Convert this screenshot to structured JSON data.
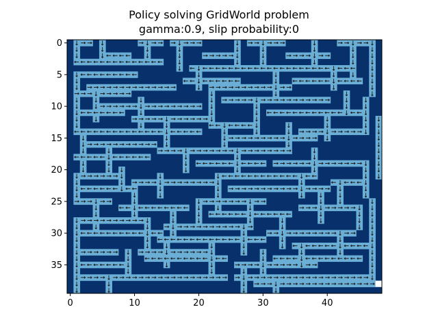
{
  "chart_data": {
    "type": "heatmap",
    "title_lines": [
      "Policy solving GridWorld problem",
      "gamma:0.9, slip probability:0"
    ],
    "xlabel": "",
    "ylabel": "",
    "grid_size": [
      40,
      49
    ],
    "xlim": [
      -0.5,
      48.5
    ],
    "ylim": [
      39.5,
      -0.5
    ],
    "x_ticks": [
      0,
      10,
      20,
      30,
      40
    ],
    "y_ticks": [
      0,
      5,
      10,
      15,
      20,
      25,
      30,
      35
    ],
    "colors": {
      "wall": "#08306b",
      "path": "#6baed6",
      "goal": "#ffffff",
      "arrow": "#1a1a1a",
      "background": "#ffffff"
    },
    "goal": {
      "row": 38,
      "col": 48
    },
    "path_segments": [
      {
        "dir": "right",
        "row": 0,
        "c0": 1,
        "c1": 3
      },
      {
        "dir": "down",
        "col": 1,
        "r0": 0,
        "r1": 3
      },
      {
        "dir": "left",
        "row": 2,
        "c0": 5,
        "c1": 9
      },
      {
        "dir": "down",
        "col": 5,
        "r0": 0,
        "r1": 2
      },
      {
        "dir": "right",
        "row": 0,
        "c0": 11,
        "c1": 14
      },
      {
        "dir": "down",
        "col": 12,
        "r0": 0,
        "r1": 3
      },
      {
        "dir": "left",
        "row": 3,
        "c0": 1,
        "c1": 14
      },
      {
        "dir": "right",
        "row": 0,
        "c0": 16,
        "c1": 20
      },
      {
        "dir": "down",
        "col": 17,
        "r0": 0,
        "r1": 4
      },
      {
        "dir": "right",
        "row": 2,
        "c0": 21,
        "c1": 26
      },
      {
        "dir": "down",
        "col": 26,
        "r0": 0,
        "r1": 3
      },
      {
        "dir": "right",
        "row": 0,
        "c0": 28,
        "c1": 33
      },
      {
        "dir": "down",
        "col": 30,
        "r0": 0,
        "r1": 4
      },
      {
        "dir": "right",
        "row": 2,
        "c0": 34,
        "c1": 40
      },
      {
        "dir": "down",
        "col": 38,
        "r0": 0,
        "r1": 3
      },
      {
        "dir": "right",
        "row": 0,
        "c0": 42,
        "c1": 47
      },
      {
        "dir": "down",
        "col": 44,
        "r0": 0,
        "r1": 5
      },
      {
        "dir": "left",
        "row": 4,
        "c0": 19,
        "c1": 44
      },
      {
        "dir": "down",
        "col": 47,
        "r0": 0,
        "r1": 8
      },
      {
        "dir": "left",
        "row": 5,
        "c0": 1,
        "c1": 10
      },
      {
        "dir": "down",
        "col": 1,
        "r0": 5,
        "r1": 8
      },
      {
        "dir": "right",
        "row": 7,
        "c0": 3,
        "c1": 16
      },
      {
        "dir": "left",
        "row": 6,
        "c0": 18,
        "c1": 26
      },
      {
        "dir": "down",
        "col": 20,
        "r0": 4,
        "r1": 7
      },
      {
        "dir": "right",
        "row": 7,
        "c0": 22,
        "c1": 34
      },
      {
        "dir": "down",
        "col": 32,
        "r0": 5,
        "r1": 8
      },
      {
        "dir": "left",
        "row": 6,
        "c0": 35,
        "c1": 45
      },
      {
        "dir": "down",
        "col": 41,
        "r0": 4,
        "r1": 7
      },
      {
        "dir": "right",
        "row": 8,
        "c0": 1,
        "c1": 9
      },
      {
        "dir": "down",
        "col": 4,
        "r0": 8,
        "r1": 12
      },
      {
        "dir": "right",
        "row": 10,
        "c0": 5,
        "c1": 20
      },
      {
        "dir": "down",
        "col": 11,
        "r0": 9,
        "r1": 13
      },
      {
        "dir": "left",
        "row": 11,
        "c0": 1,
        "c1": 8
      },
      {
        "dir": "down",
        "col": 1,
        "r0": 9,
        "r1": 14
      },
      {
        "dir": "right",
        "row": 12,
        "c0": 10,
        "c1": 22
      },
      {
        "dir": "down",
        "col": 22,
        "r0": 8,
        "r1": 12
      },
      {
        "dir": "right",
        "row": 9,
        "c0": 24,
        "c1": 40
      },
      {
        "dir": "down",
        "col": 29,
        "r0": 9,
        "r1": 14
      },
      {
        "dir": "left",
        "row": 11,
        "c0": 31,
        "c1": 45
      },
      {
        "dir": "down",
        "col": 43,
        "r0": 8,
        "r1": 11
      },
      {
        "dir": "down",
        "col": 46,
        "r0": 9,
        "r1": 14
      },
      {
        "dir": "left",
        "row": 14,
        "c0": 1,
        "c1": 20
      },
      {
        "dir": "down",
        "col": 15,
        "r0": 12,
        "r1": 16
      },
      {
        "dir": "right",
        "row": 16,
        "c0": 2,
        "c1": 13
      },
      {
        "dir": "down",
        "col": 2,
        "r0": 15,
        "r1": 20
      },
      {
        "dir": "left",
        "row": 13,
        "c0": 22,
        "c1": 28
      },
      {
        "dir": "down",
        "col": 24,
        "r0": 13,
        "r1": 17
      },
      {
        "dir": "right",
        "row": 15,
        "c0": 25,
        "c1": 38
      },
      {
        "dir": "down",
        "col": 34,
        "r0": 13,
        "r1": 16
      },
      {
        "dir": "right",
        "row": 14,
        "c0": 36,
        "c1": 45
      },
      {
        "dir": "down",
        "col": 40,
        "r0": 12,
        "r1": 15
      },
      {
        "dir": "down",
        "col": 48,
        "r0": 12,
        "r1": 21
      },
      {
        "dir": "left",
        "row": 18,
        "c0": 1,
        "c1": 12
      },
      {
        "dir": "down",
        "col": 6,
        "r0": 17,
        "r1": 21
      },
      {
        "dir": "right",
        "row": 17,
        "c0": 14,
        "c1": 34
      },
      {
        "dir": "down",
        "col": 18,
        "r0": 17,
        "r1": 20
      },
      {
        "dir": "left",
        "row": 19,
        "c0": 20,
        "c1": 30
      },
      {
        "dir": "down",
        "col": 26,
        "r0": 17,
        "r1": 20
      },
      {
        "dir": "right",
        "row": 19,
        "c0": 32,
        "c1": 45
      },
      {
        "dir": "down",
        "col": 38,
        "r0": 17,
        "r1": 20
      },
      {
        "dir": "right",
        "row": 21,
        "c0": 1,
        "c1": 7
      },
      {
        "dir": "down",
        "col": 1,
        "r0": 21,
        "r1": 25
      },
      {
        "dir": "left",
        "row": 23,
        "c0": 2,
        "c1": 10
      },
      {
        "dir": "down",
        "col": 8,
        "r0": 20,
        "r1": 23
      },
      {
        "dir": "right",
        "row": 22,
        "c0": 10,
        "c1": 22
      },
      {
        "dir": "down",
        "col": 14,
        "r0": 21,
        "r1": 24
      },
      {
        "dir": "left",
        "row": 21,
        "c0": 24,
        "c1": 38
      },
      {
        "dir": "down",
        "col": 23,
        "r0": 21,
        "r1": 26
      },
      {
        "dir": "right",
        "row": 23,
        "c0": 25,
        "c1": 40
      },
      {
        "dir": "down",
        "col": 36,
        "r0": 21,
        "r1": 24
      },
      {
        "dir": "left",
        "row": 22,
        "c0": 41,
        "c1": 46
      },
      {
        "dir": "down",
        "col": 42,
        "r0": 22,
        "r1": 25
      },
      {
        "dir": "down",
        "col": 46,
        "r0": 19,
        "r1": 24
      },
      {
        "dir": "right",
        "row": 25,
        "c0": 1,
        "c1": 6
      },
      {
        "dir": "down",
        "col": 4,
        "r0": 25,
        "r1": 29
      },
      {
        "dir": "left",
        "row": 26,
        "c0": 8,
        "c1": 18
      },
      {
        "dir": "down",
        "col": 10,
        "r0": 24,
        "r1": 27
      },
      {
        "dir": "right",
        "row": 25,
        "c0": 20,
        "c1": 30
      },
      {
        "dir": "down",
        "col": 20,
        "r0": 25,
        "r1": 28
      },
      {
        "dir": "left",
        "row": 27,
        "c0": 22,
        "c1": 34
      },
      {
        "dir": "down",
        "col": 28,
        "r0": 25,
        "r1": 28
      },
      {
        "dir": "right",
        "row": 26,
        "c0": 36,
        "c1": 45
      },
      {
        "dir": "down",
        "col": 39,
        "r0": 24,
        "r1": 28
      },
      {
        "dir": "down",
        "col": 45,
        "r0": 26,
        "r1": 29
      },
      {
        "dir": "right",
        "row": 28,
        "c0": 1,
        "c1": 12
      },
      {
        "dir": "down",
        "col": 1,
        "r0": 28,
        "r1": 32
      },
      {
        "dir": "left",
        "row": 30,
        "c0": 2,
        "c1": 14
      },
      {
        "dir": "down",
        "col": 12,
        "r0": 28,
        "r1": 32
      },
      {
        "dir": "right",
        "row": 29,
        "c0": 15,
        "c1": 28
      },
      {
        "dir": "down",
        "col": 16,
        "r0": 27,
        "r1": 30
      },
      {
        "dir": "left",
        "row": 31,
        "c0": 14,
        "c1": 30
      },
      {
        "dir": "down",
        "col": 27,
        "r0": 29,
        "r1": 33
      },
      {
        "dir": "right",
        "row": 30,
        "c0": 31,
        "c1": 44
      },
      {
        "dir": "down",
        "col": 33,
        "r0": 28,
        "r1": 32
      },
      {
        "dir": "left",
        "row": 32,
        "c0": 35,
        "c1": 46
      },
      {
        "dir": "down",
        "col": 42,
        "r0": 30,
        "r1": 33
      },
      {
        "dir": "down",
        "col": 47,
        "r0": 25,
        "r1": 38
      },
      {
        "dir": "right",
        "row": 33,
        "c0": 1,
        "c1": 7
      },
      {
        "dir": "down",
        "col": 1,
        "r0": 33,
        "r1": 39
      },
      {
        "dir": "left",
        "row": 35,
        "c0": 2,
        "c1": 9
      },
      {
        "dir": "down",
        "col": 9,
        "r0": 33,
        "r1": 37
      },
      {
        "dir": "right",
        "row": 33,
        "c0": 11,
        "c1": 22
      },
      {
        "dir": "down",
        "col": 15,
        "r0": 32,
        "r1": 35
      },
      {
        "dir": "left",
        "row": 34,
        "c0": 12,
        "c1": 24
      },
      {
        "dir": "down",
        "col": 22,
        "r0": 32,
        "r1": 36
      },
      {
        "dir": "right",
        "row": 35,
        "c0": 26,
        "c1": 38
      },
      {
        "dir": "down",
        "col": 30,
        "r0": 33,
        "r1": 37
      },
      {
        "dir": "left",
        "row": 34,
        "c0": 32,
        "c1": 45
      },
      {
        "dir": "down",
        "col": 36,
        "r0": 32,
        "r1": 35
      },
      {
        "dir": "right",
        "row": 37,
        "c0": 2,
        "c1": 24
      },
      {
        "dir": "down",
        "col": 6,
        "r0": 37,
        "r1": 39
      },
      {
        "dir": "right",
        "row": 37,
        "c0": 26,
        "c1": 46
      },
      {
        "dir": "down",
        "col": 27,
        "r0": 36,
        "r1": 39
      },
      {
        "dir": "right",
        "row": 38,
        "c0": 29,
        "c1": 35
      },
      {
        "dir": "down",
        "col": 32,
        "r0": 38,
        "r1": 39
      },
      {
        "dir": "right",
        "row": 38,
        "c0": 36,
        "c1": 47
      }
    ]
  }
}
